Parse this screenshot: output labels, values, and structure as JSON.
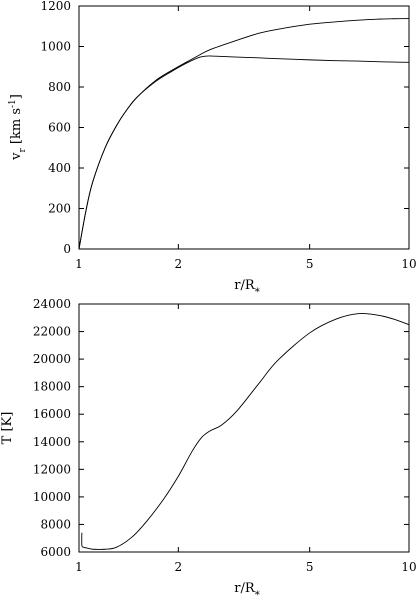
{
  "chart_data": [
    {
      "type": "line",
      "xscale": "log",
      "xlim": [
        1,
        10
      ],
      "ylim": [
        0,
        1200
      ],
      "xticks": [
        1,
        2,
        5,
        10
      ],
      "xtick_labels": [
        "1",
        "2",
        "5",
        "10"
      ],
      "yticks": [
        0,
        200,
        400,
        600,
        800,
        1000,
        1200
      ],
      "ytick_labels": [
        "0",
        "200",
        "400",
        "600",
        "800",
        "1000",
        "1200"
      ],
      "ylabel_main": "v",
      "ylabel_sub": "r",
      "ylabel_unit": " [km s",
      "ylabel_exp": "-1",
      "ylabel_close": "]",
      "xlabel_main": "r/R",
      "xlabel_sub": "*",
      "series": [
        {
          "x": [
            1.0,
            1.05,
            1.1,
            1.2,
            1.3,
            1.4,
            1.5,
            1.7,
            1.9,
            2.1,
            2.3,
            2.5,
            3.0,
            3.5,
            4.0,
            5.0,
            6.0,
            7.0,
            8.0,
            9.0,
            10.0
          ],
          "y": [
            0,
            190,
            330,
            500,
            610,
            690,
            750,
            830,
            880,
            920,
            955,
            985,
            1030,
            1065,
            1085,
            1110,
            1122,
            1130,
            1135,
            1137,
            1138
          ]
        },
        {
          "x": [
            1.0,
            1.05,
            1.1,
            1.2,
            1.3,
            1.4,
            1.5,
            1.7,
            1.9,
            2.1,
            2.3,
            2.45,
            2.6,
            3.0,
            3.5,
            4.0,
            5.0,
            6.0,
            7.0,
            8.0,
            9.0,
            10.0
          ],
          "y": [
            0,
            190,
            330,
            500,
            610,
            690,
            750,
            825,
            875,
            915,
            945,
            953,
            952,
            948,
            944,
            940,
            934,
            930,
            928,
            925,
            923,
            922
          ]
        }
      ]
    },
    {
      "type": "line",
      "xscale": "log",
      "xlim": [
        1,
        10
      ],
      "ylim": [
        6000,
        24000
      ],
      "xticks": [
        1,
        2,
        5,
        10
      ],
      "xtick_labels": [
        "1",
        "2",
        "5",
        "10"
      ],
      "yticks": [
        6000,
        8000,
        10000,
        12000,
        14000,
        16000,
        18000,
        20000,
        22000,
        24000
      ],
      "ytick_labels": [
        "6000",
        "8000",
        "10000",
        "12000",
        "14000",
        "16000",
        "18000",
        "20000",
        "22000",
        "24000"
      ],
      "ylabel": "T [K]",
      "xlabel_main": "r/R",
      "xlabel_sub": "*",
      "series": [
        {
          "x": [
            1.02,
            1.02,
            1.03,
            1.05,
            1.1,
            1.2,
            1.3,
            1.45,
            1.6,
            1.8,
            2.0,
            2.2,
            2.35,
            2.5,
            2.7,
            3.0,
            3.5,
            4.0,
            5.0,
            6.0,
            7.0,
            8.0,
            9.0,
            10.0
          ],
          "y": [
            7400,
            6500,
            6350,
            6300,
            6200,
            6200,
            6350,
            7100,
            8200,
            9800,
            11500,
            13300,
            14300,
            14800,
            15200,
            16200,
            18200,
            19900,
            21900,
            22900,
            23300,
            23200,
            22900,
            22500
          ]
        }
      ]
    }
  ]
}
